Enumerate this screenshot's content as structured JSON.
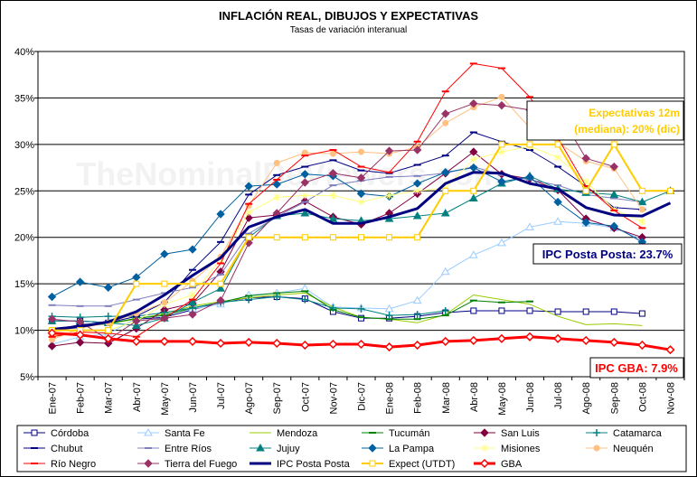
{
  "chart_data": {
    "type": "line",
    "title": "INFLACIÓN REAL, DIBUJOS Y EXPECTATIVAS",
    "subtitle": "Tasas de variación interanual",
    "watermark": "TheNominalDeViewers.com",
    "categories": [
      "Ene-07",
      "Feb-07",
      "Mar-07",
      "Abr-07",
      "May-07",
      "Jun-07",
      "Jul-07",
      "Ago-07",
      "Sep-07",
      "Oct-07",
      "Nov-07",
      "Dic-07",
      "Ene-08",
      "Feb-08",
      "Mar-08",
      "Abr-08",
      "May-08",
      "Jun-08",
      "Jul-08",
      "Ago-08",
      "Sep-08",
      "Oct-08",
      "Nov-08"
    ],
    "ylim": [
      5,
      40
    ],
    "yticks": [
      "5%",
      "10%",
      "15%",
      "20%",
      "25%",
      "30%",
      "35%",
      "40%"
    ],
    "series": [
      {
        "name": "Córdoba",
        "color": "#000080",
        "width": 1,
        "marker": "square-open",
        "values": [
          11,
          11,
          10.8,
          11.2,
          11.4,
          12.2,
          13,
          13.5,
          13.6,
          13.4,
          12,
          11.3,
          11.3,
          11.5,
          11.9,
          12.1,
          12.1,
          12.1,
          12,
          12,
          12,
          11.8,
          null
        ]
      },
      {
        "name": "Santa Fe",
        "color": "#99ccff",
        "width": 1,
        "marker": "tri-open",
        "values": [
          8.5,
          9.3,
          9.6,
          11.3,
          11.7,
          12.3,
          12.8,
          13.8,
          14,
          14.5,
          12.5,
          12.4,
          12.3,
          13.2,
          16.3,
          18.1,
          19.4,
          21.1,
          21.7,
          21.5,
          21,
          19.8,
          null
        ]
      },
      {
        "name": "Mendoza",
        "color": "#99cc00",
        "width": 1,
        "marker": "none",
        "values": [
          10,
          10.5,
          10.7,
          11.2,
          11.8,
          12.6,
          13.1,
          13.5,
          13.8,
          14,
          12.5,
          11.4,
          11.2,
          10.8,
          11.7,
          13.8,
          13.3,
          12.8,
          11.5,
          10.6,
          10.7,
          10.5,
          null
        ]
      },
      {
        "name": "Tucumán",
        "color": "#008000",
        "width": 1,
        "marker": "dash",
        "values": [
          10,
          10.4,
          10.7,
          11.3,
          11.6,
          12.4,
          13,
          13.7,
          14,
          14.2,
          12.2,
          11.4,
          11.2,
          11.2,
          11.6,
          13.2,
          13,
          13.1,
          null,
          null,
          null,
          null,
          null
        ]
      },
      {
        "name": "San Luis",
        "color": "#800040",
        "width": 1,
        "marker": "diamond-fill",
        "values": [
          8.3,
          8.7,
          8.6,
          10.2,
          12.2,
          12.9,
          16.3,
          22.1,
          22.4,
          23.9,
          22.2,
          21.4,
          22.6,
          24.7,
          26.9,
          29.2,
          26.8,
          26.3,
          25.1,
          22,
          21,
          20,
          null
        ]
      },
      {
        "name": "Catamarca",
        "color": "#008080",
        "width": 1,
        "marker": "plus",
        "values": [
          11.5,
          11.4,
          11.5,
          11.5,
          11.9,
          12.4,
          13,
          13.3,
          13.6,
          13.3,
          12.4,
          12.3,
          11.6,
          11.7,
          12.1,
          null,
          null,
          null,
          null,
          null,
          null,
          null,
          null
        ]
      },
      {
        "name": "Chubut",
        "color": "#000080",
        "width": 1,
        "marker": "dash",
        "values": [
          10,
          10.6,
          10.8,
          11.5,
          13,
          16.5,
          19.5,
          24.6,
          26.7,
          27.6,
          28.3,
          27.2,
          26.9,
          27.8,
          28.8,
          31.3,
          30.3,
          29.4,
          27.6,
          25.5,
          23.2,
          23,
          null
        ]
      },
      {
        "name": "Entre Ríos",
        "color": "#8080c0",
        "width": 1,
        "marker": "dash",
        "values": [
          12.7,
          12.6,
          12.6,
          13.3,
          14,
          14.6,
          16,
          20.4,
          22.2,
          23.8,
          25.6,
          26.1,
          26.5,
          26.6,
          26.9,
          27.6,
          26.7,
          26.2,
          25.6,
          24.6,
          24.2,
          23.8,
          null
        ]
      },
      {
        "name": "Jujuy",
        "color": "#008080",
        "width": 1,
        "marker": "tri-fill",
        "values": [
          11,
          11,
          10.8,
          10.5,
          11.3,
          13,
          14.5,
          20,
          22.3,
          22.6,
          22,
          21.8,
          22,
          22.3,
          22.6,
          24.2,
          25.8,
          26.6,
          25.2,
          24.8,
          24.6,
          23.8,
          25
        ]
      },
      {
        "name": "La Pampa",
        "color": "#0060a0",
        "width": 1,
        "marker": "diamond-fill",
        "values": [
          13.6,
          15.2,
          14.6,
          15.7,
          18.2,
          18.7,
          22.5,
          25.5,
          25.7,
          26.8,
          26.6,
          24.7,
          24.4,
          25.8,
          27,
          27.5,
          26,
          26.5,
          23.8,
          21.6,
          21.2,
          19.5,
          null
        ]
      },
      {
        "name": "Misiones",
        "color": "#ffff80",
        "width": 1,
        "marker": "star",
        "values": [
          9.4,
          10,
          10,
          11,
          12.8,
          13.8,
          17.7,
          22.7,
          24.3,
          24.5,
          24.5,
          23.8,
          24.5,
          25,
          25.3,
          28.4,
          29.2,
          29.8,
          28.6,
          26,
          23,
          21.7,
          null
        ]
      },
      {
        "name": "Neuquén",
        "color": "#ffc080",
        "width": 1,
        "marker": "circle-fill",
        "values": [
          9,
          10.2,
          10.8,
          11.8,
          13,
          15.3,
          17.9,
          23.4,
          28,
          29.1,
          29,
          29.2,
          29,
          29.7,
          32.3,
          34,
          35.1,
          31.8,
          30.2,
          28.2,
          27.4,
          23,
          null
        ]
      },
      {
        "name": "Río Negro",
        "color": "#ff0000",
        "width": 1,
        "marker": "dash",
        "values": [
          9.3,
          9.8,
          9.7,
          9.3,
          11.3,
          13.3,
          17.2,
          23.6,
          26.2,
          28.8,
          29.4,
          27.6,
          27,
          30.3,
          35.7,
          38.7,
          38.2,
          35.1,
          30.7,
          25.5,
          22.9,
          21,
          null
        ]
      },
      {
        "name": "Tierra del Fuego",
        "color": "#993366",
        "width": 1,
        "marker": "diamond-fill",
        "values": [
          11.2,
          10.9,
          9,
          11,
          11.3,
          11.7,
          13.2,
          19.4,
          22.6,
          25.9,
          26.9,
          26.4,
          29.3,
          29.4,
          33.3,
          34.4,
          34.2,
          33.7,
          33.6,
          28.5,
          27.6,
          null,
          null
        ]
      },
      {
        "name": "IPC Posta Posta",
        "color": "#000080",
        "width": 3,
        "marker": "none",
        "values": [
          10.1,
          10.4,
          10.9,
          12,
          13.8,
          15.9,
          17.8,
          21.1,
          22.2,
          23,
          21.5,
          21.5,
          22.2,
          23.1,
          25.8,
          27,
          26.9,
          25.8,
          25.2,
          23.2,
          22.4,
          22.3,
          23.7
        ]
      },
      {
        "name": "Expect (UTDT)",
        "color": "#ffcc00",
        "width": 2,
        "marker": "square-open",
        "values": [
          10,
          10,
          10,
          15,
          15,
          15,
          15,
          20,
          20,
          20,
          20,
          20,
          20,
          20,
          25,
          25,
          30,
          30,
          30,
          25,
          30,
          25,
          25
        ]
      },
      {
        "name": "GBA",
        "color": "#ff0000",
        "width": 3,
        "marker": "diamond-open",
        "values": [
          9.7,
          9.5,
          9.1,
          8.8,
          8.8,
          8.8,
          8.6,
          8.7,
          8.6,
          8.4,
          8.5,
          8.5,
          8.2,
          8.4,
          8.8,
          8.9,
          9.1,
          9.3,
          9.1,
          8.9,
          8.7,
          8.4,
          7.9
        ]
      }
    ],
    "annotations": [
      {
        "text": "Expectativas 12m",
        "color": "#ffcc00"
      },
      {
        "text": "(mediana): 20% (dic)",
        "color": "#ffcc00"
      },
      {
        "text": "IPC Posta Posta: 23.7%",
        "color": "#000080"
      },
      {
        "text": "IPC GBA: 7.9%",
        "color": "#ff0000"
      }
    ]
  }
}
